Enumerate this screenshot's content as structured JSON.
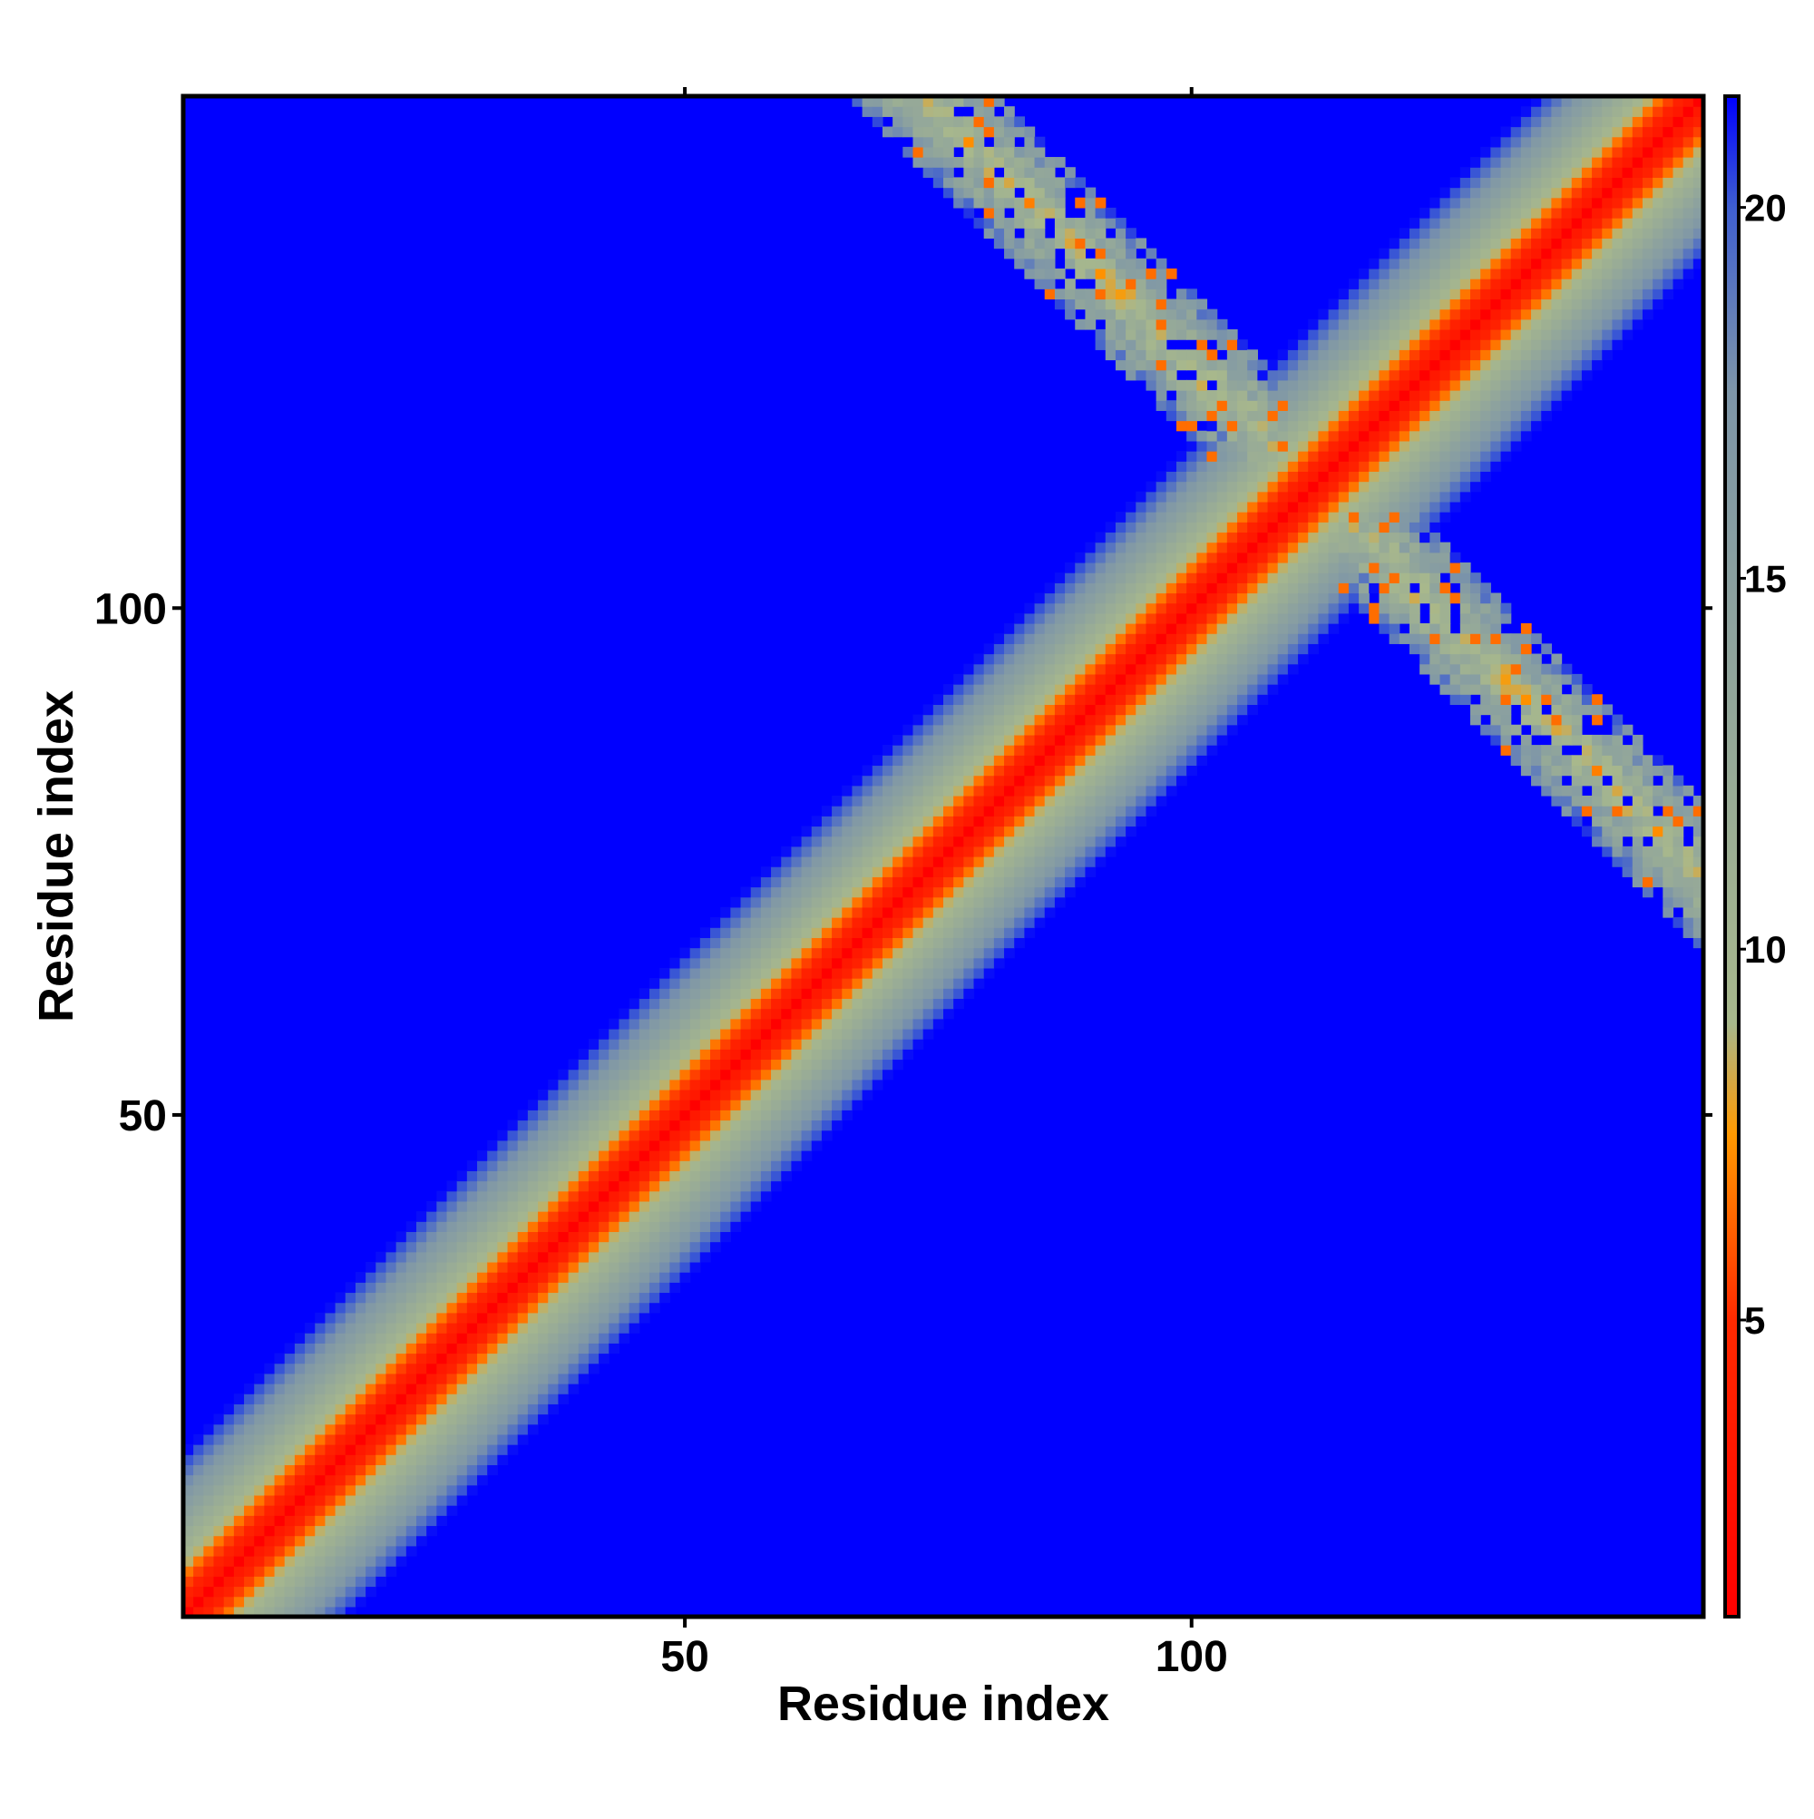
{
  "chart_data": {
    "type": "heatmap",
    "xlabel": "Residue index",
    "ylabel": "Residue index",
    "n_residues": 150,
    "xlim": [
      1,
      150
    ],
    "ylim": [
      1,
      150
    ],
    "x_ticks": [
      50,
      100
    ],
    "y_ticks": [
      50,
      100
    ],
    "grid": false,
    "matrix_description": "symmetric residue-residue distance map; distance grows with sequence separation |i-j|",
    "antiparallel_band": {
      "anti_diagonal_sum": 224,
      "i_range": [
        64,
        110
      ],
      "min_value": 6.5
    },
    "colorbar": {
      "range": [
        1,
        21.5
      ],
      "ticks": [
        5,
        10,
        15,
        20
      ],
      "tick_labels": [
        "5",
        "10",
        "15",
        "20"
      ],
      "placement": "right",
      "stops": [
        {
          "value": 1,
          "color": "#ff0000"
        },
        {
          "value": 5,
          "color": "#ff2a00"
        },
        {
          "value": 7.5,
          "color": "#ff9900"
        },
        {
          "value": 9,
          "color": "#a8b88c"
        },
        {
          "value": 17.5,
          "color": "#7e96a8"
        },
        {
          "value": 20,
          "color": "#3f5fd0"
        },
        {
          "value": 21.5,
          "color": "#0000ff"
        }
      ]
    }
  }
}
